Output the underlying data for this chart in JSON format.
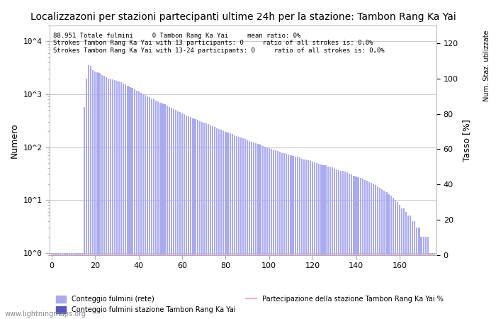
{
  "title": "Localizzazoni per stazioni partecipanti ultime 24h per la stazione: Tambon Rang Ka Yai",
  "annotation_lines": [
    "88.951 Totale fulmini     0 Tambon Rang Ka Yai     mean ratio: 0%",
    "Strokes Tambon Rang Ka Yai with 13 participants: 0     ratio of all strokes is: 0,0%",
    "Strokes Tambon Rang Ka Yai with 13-24 participants: 0     ratio of all strokes is: 0,0%"
  ],
  "ylabel_left": "Numero",
  "ylabel_right": "Tasso [%]",
  "xlabel_right": "Num. Staz. utilizzate",
  "bar_color_light": "#aaaaee",
  "bar_color_dark": "#5555bb",
  "line_color": "#ffaacc",
  "background_color": "#ffffff",
  "watermark": "www.lightningmaps.org",
  "ylim_right": [
    0,
    130
  ],
  "yticks_right": [
    0,
    20,
    40,
    60,
    80,
    100,
    120
  ],
  "bar_values": [
    1,
    1,
    1,
    1,
    1,
    1,
    1,
    1,
    1,
    1,
    1,
    1,
    1,
    1,
    1,
    580,
    2000,
    3500,
    3400,
    2900,
    2700,
    2600,
    2500,
    2300,
    2200,
    2100,
    2000,
    1950,
    1900,
    1850,
    1800,
    1750,
    1680,
    1600,
    1520,
    1450,
    1380,
    1310,
    1240,
    1180,
    1120,
    1060,
    1010,
    960,
    920,
    880,
    840,
    800,
    760,
    730,
    700,
    670,
    640,
    610,
    580,
    550,
    520,
    500,
    480,
    460,
    440,
    420,
    400,
    385,
    370,
    355,
    340,
    325,
    310,
    300,
    290,
    280,
    270,
    260,
    250,
    240,
    230,
    220,
    212,
    204,
    196,
    188,
    181,
    175,
    169,
    163,
    157,
    151,
    146,
    141,
    136,
    132,
    127,
    122,
    118,
    114,
    110,
    106,
    102,
    99,
    96,
    93,
    90,
    87,
    84,
    81,
    78,
    76,
    74,
    72,
    70,
    68,
    66,
    65,
    63,
    61,
    59,
    58,
    56,
    55,
    53,
    52,
    50,
    49,
    47,
    46,
    45,
    43,
    42,
    41,
    39,
    38,
    37,
    36,
    35,
    34,
    33,
    31,
    30,
    29,
    28,
    27,
    26,
    25,
    24,
    23,
    22,
    21,
    20,
    19,
    18,
    17,
    16,
    15,
    14,
    13,
    12,
    11,
    10,
    9,
    8,
    7,
    7,
    6,
    5,
    5,
    4,
    4,
    3,
    3,
    2,
    2,
    2,
    2,
    1,
    1,
    1
  ],
  "station_bar_values": [
    0,
    0,
    0,
    0,
    0,
    0,
    0,
    0,
    0,
    0,
    0,
    0,
    0,
    0,
    0,
    0,
    0,
    0,
    0,
    0,
    0,
    0,
    0,
    0,
    0,
    0,
    0,
    0,
    0,
    0,
    0,
    0,
    0,
    0,
    0,
    0,
    0,
    0,
    0,
    0,
    0,
    0,
    0,
    0,
    0,
    0,
    0,
    0,
    0,
    0,
    0,
    0,
    0,
    0,
    0,
    0,
    0,
    0,
    0,
    0,
    0,
    0,
    0,
    0,
    0,
    0,
    0,
    0,
    0,
    0,
    0,
    0,
    0,
    0,
    0,
    0,
    0,
    0,
    0,
    0,
    0,
    0,
    0,
    0,
    0,
    0,
    0,
    0,
    0,
    0,
    0,
    0,
    0,
    0,
    0,
    0,
    0,
    0,
    0,
    0,
    0,
    0,
    0,
    0,
    0,
    0,
    0,
    0,
    0,
    0,
    0,
    0,
    0,
    0,
    0,
    0,
    0,
    0,
    0,
    0,
    0,
    0,
    0,
    0,
    0,
    0,
    0,
    0,
    0,
    0,
    0,
    0,
    0,
    0,
    0,
    0,
    0,
    0,
    0,
    0,
    0,
    0,
    0,
    0,
    0,
    0,
    0,
    0,
    0,
    0,
    0,
    0,
    0,
    0,
    0,
    0,
    0,
    0,
    0,
    0,
    0,
    0,
    0,
    0,
    0,
    0,
    0,
    0,
    0,
    0,
    0,
    0,
    0,
    0,
    0,
    0,
    0
  ],
  "participation_line": [
    0,
    0,
    0,
    0,
    0,
    0,
    0,
    0,
    0,
    0,
    0,
    0,
    0,
    0,
    0,
    0,
    0,
    0,
    0,
    0,
    0,
    0,
    0,
    0,
    0,
    0,
    0,
    0,
    0,
    0,
    0,
    0,
    0,
    0,
    0,
    0,
    0,
    0,
    0,
    0,
    0,
    0,
    0,
    0,
    0,
    0,
    0,
    0,
    0,
    0,
    0,
    0,
    0,
    0,
    0,
    0,
    0,
    0,
    0,
    0,
    0,
    0,
    0,
    0,
    0,
    0,
    0,
    0,
    0,
    0,
    0,
    0,
    0,
    0,
    0,
    0,
    0,
    0,
    0,
    0,
    0,
    0,
    0,
    0,
    0,
    0,
    0,
    0,
    0,
    0,
    0,
    0,
    0,
    0,
    0,
    0,
    0,
    0,
    0,
    0,
    0,
    0,
    0,
    0,
    0,
    0,
    0,
    0,
    0,
    0,
    0,
    0,
    0,
    0,
    0,
    0,
    0,
    0,
    0,
    0,
    0,
    0,
    0,
    0,
    0,
    0,
    0,
    0,
    0,
    0,
    0,
    0,
    0,
    0,
    0,
    0,
    0,
    0,
    0,
    0,
    0,
    0,
    0,
    0,
    0,
    0,
    0,
    0,
    0,
    0,
    0,
    0,
    0,
    0,
    0,
    0,
    0,
    0,
    0,
    0,
    0,
    0,
    0,
    0,
    0,
    0,
    0,
    0,
    0,
    0,
    0,
    0,
    0,
    0,
    0,
    0,
    0
  ],
  "xticks": [
    0,
    20,
    40,
    60,
    80,
    100,
    120,
    140,
    160
  ],
  "legend_label_1": "Conteggio fulmini (rete)",
  "legend_label_2": "Conteggio fulmini stazione Tambon Rang Ka Yai",
  "legend_label_3": "Partecipazione della stazione Tambon Rang Ka Yai %"
}
